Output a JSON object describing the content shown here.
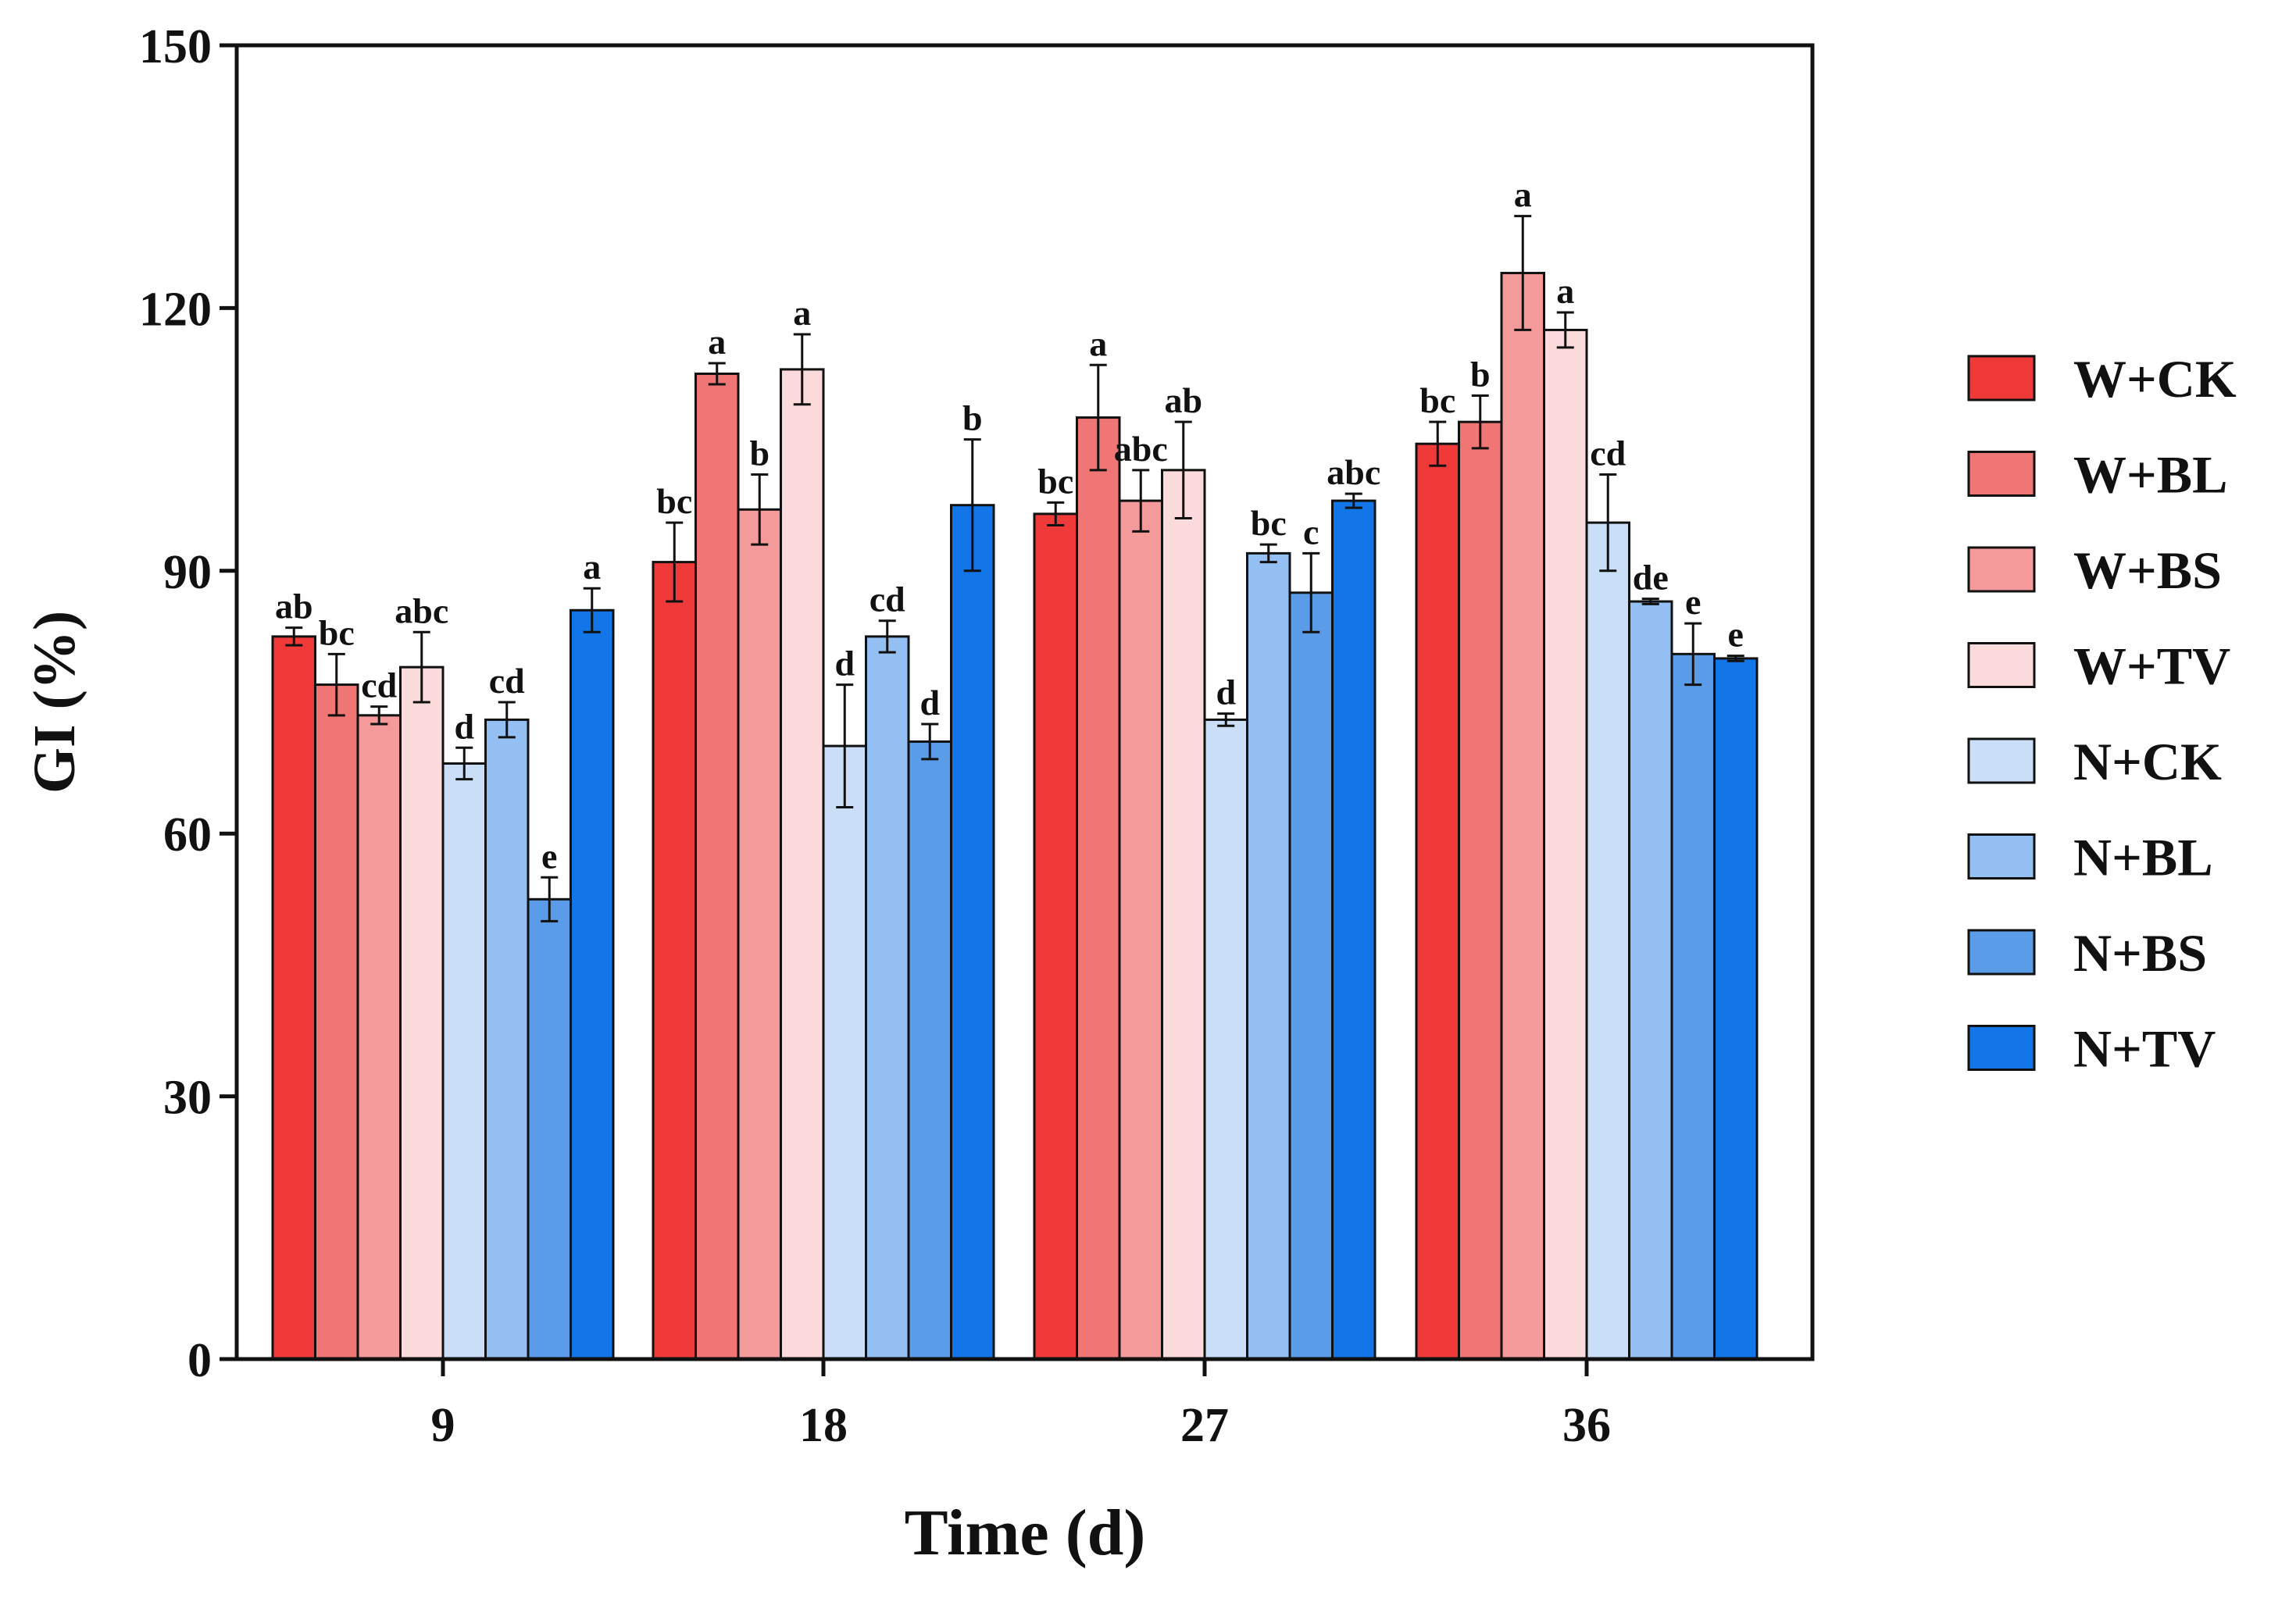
{
  "chart_data": {
    "type": "bar",
    "title": "",
    "xlabel": "Time (d)",
    "ylabel": "GI (%)",
    "ylim": [
      0,
      150
    ],
    "yticks": [
      "0",
      "30",
      "60",
      "90",
      "120",
      "150"
    ],
    "categories": [
      "9",
      "18",
      "27",
      "36"
    ],
    "grid": false,
    "legend_position": "right",
    "error_bars": true,
    "series": [
      {
        "name": "W+CK",
        "color": "#f03a3a",
        "values": [
          82.5,
          91,
          96.5,
          104.5
        ],
        "errors": [
          1,
          4.5,
          1.3,
          2.5
        ],
        "letters": [
          "ab",
          "bc",
          "bc",
          "bc"
        ]
      },
      {
        "name": "W+BL",
        "color": "#f07575",
        "values": [
          77,
          112.5,
          107.5,
          107
        ],
        "errors": [
          3.5,
          1.2,
          6,
          3
        ],
        "letters": [
          "bc",
          "a",
          "a",
          "b"
        ]
      },
      {
        "name": "W+BS",
        "color": "#f49a9a",
        "values": [
          73.5,
          97,
          98,
          124
        ],
        "errors": [
          1,
          4,
          3.5,
          6.5
        ],
        "letters": [
          "cd",
          "b",
          "abc",
          "a"
        ]
      },
      {
        "name": "W+TV",
        "color": "#fadada",
        "values": [
          79,
          113,
          101.5,
          117.5
        ],
        "errors": [
          4,
          4,
          5.5,
          2
        ],
        "letters": [
          "abc",
          "a",
          "ab",
          "a"
        ]
      },
      {
        "name": "N+CK",
        "color": "#cadff7",
        "values": [
          68,
          70,
          73,
          95.5
        ],
        "errors": [
          1.8,
          7,
          0.7,
          5.5
        ],
        "letters": [
          "d",
          "d",
          "d",
          "cd"
        ]
      },
      {
        "name": "N+BL",
        "color": "#94bff2",
        "values": [
          73,
          82.5,
          92,
          86.5
        ],
        "errors": [
          2,
          1.8,
          1,
          0.3
        ],
        "letters": [
          "cd",
          "cd",
          "bc",
          "de"
        ]
      },
      {
        "name": "N+BS",
        "color": "#5a9ce8",
        "values": [
          52.5,
          70.5,
          87.5,
          80.5
        ],
        "errors": [
          2.5,
          2,
          4.5,
          3.5
        ],
        "letters": [
          "e",
          "d",
          "c",
          "e"
        ]
      },
      {
        "name": "N+TV",
        "color": "#1275e8",
        "values": [
          85.5,
          97.5,
          98,
          80
        ],
        "errors": [
          2.5,
          7.5,
          0.8,
          0.3
        ],
        "letters": [
          "a",
          "b",
          "abc",
          "e"
        ]
      }
    ]
  }
}
